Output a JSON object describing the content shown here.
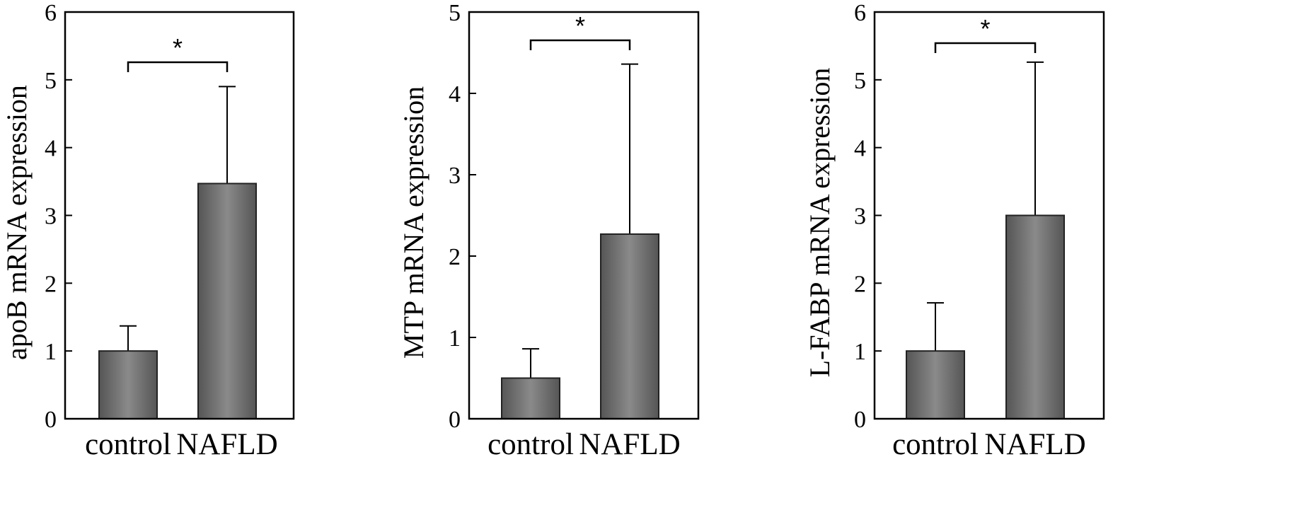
{
  "chart_data": [
    {
      "type": "bar",
      "categories": [
        "control",
        "NAFLD"
      ],
      "values": [
        1.0,
        3.47
      ],
      "error_upper": [
        1.37,
        4.9
      ],
      "ylabel": "apoB mRNA expression",
      "ylim": [
        0,
        6
      ],
      "yticks": [
        "0",
        "1",
        "2",
        "3",
        "4",
        "5",
        "6"
      ],
      "significance": "*",
      "bar_color": "#707070"
    },
    {
      "type": "bar",
      "categories": [
        "control",
        "NAFLD"
      ],
      "values": [
        0.5,
        2.27
      ],
      "error_upper": [
        0.86,
        4.36
      ],
      "ylabel": "MTP mRNA expression",
      "ylim": [
        0,
        5
      ],
      "yticks": [
        "0",
        "1",
        "2",
        "3",
        "4",
        "5"
      ],
      "significance": "*",
      "bar_color": "#707070"
    },
    {
      "type": "bar",
      "categories": [
        "control",
        "NAFLD"
      ],
      "values": [
        1.0,
        3.0
      ],
      "error_upper": [
        1.71,
        5.26
      ],
      "ylabel": "L-FABP mRNA expression",
      "ylim": [
        0,
        6
      ],
      "yticks": [
        "0",
        "1",
        "2",
        "3",
        "4",
        "5",
        "6"
      ],
      "significance": "*",
      "bar_color": "#707070"
    }
  ]
}
